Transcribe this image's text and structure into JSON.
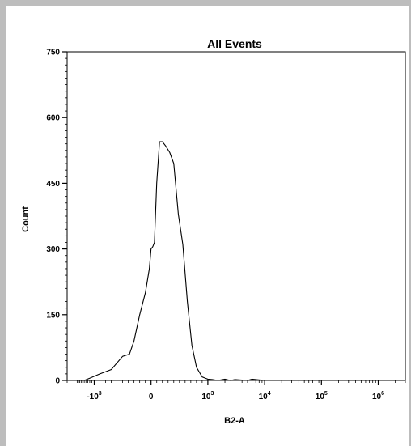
{
  "chart_data": {
    "type": "area",
    "title": "All Events",
    "xlabel": "B2-A",
    "ylabel": "Count",
    "ylim": [
      0,
      750
    ],
    "y_ticks": [
      0,
      150,
      300,
      450,
      600,
      750
    ],
    "x_scale": "biexponential",
    "x_ticks": [
      {
        "value": -1000,
        "base": "-10",
        "exp": "3"
      },
      {
        "value": 0,
        "base": "0",
        "exp": ""
      },
      {
        "value": 1000,
        "base": "10",
        "exp": "3"
      },
      {
        "value": 10000,
        "base": "10",
        "exp": "4"
      },
      {
        "value": 100000,
        "base": "10",
        "exp": "5"
      },
      {
        "value": 1000000,
        "base": "10",
        "exp": "6"
      }
    ],
    "grid": false,
    "series": [
      {
        "x": [
          -2200,
          -1500,
          -1200,
          -900,
          -700,
          -500,
          -380,
          -300,
          -200,
          -100,
          -30,
          0,
          30,
          60,
          100,
          150,
          200,
          260,
          330,
          400,
          480,
          560,
          640,
          720,
          800,
          900,
          1000,
          1200,
          1500,
          2000,
          2500,
          3000,
          5000,
          6000,
          10000,
          100000,
          1000000,
          3000000
        ],
        "y": [
          0,
          0,
          5,
          15,
          25,
          55,
          60,
          90,
          150,
          200,
          255,
          300,
          305,
          315,
          450,
          545,
          545,
          535,
          520,
          495,
          380,
          310,
          180,
          80,
          30,
          8,
          3,
          2,
          0,
          3,
          0,
          2,
          0,
          3,
          0,
          0,
          0,
          0
        ]
      }
    ]
  }
}
